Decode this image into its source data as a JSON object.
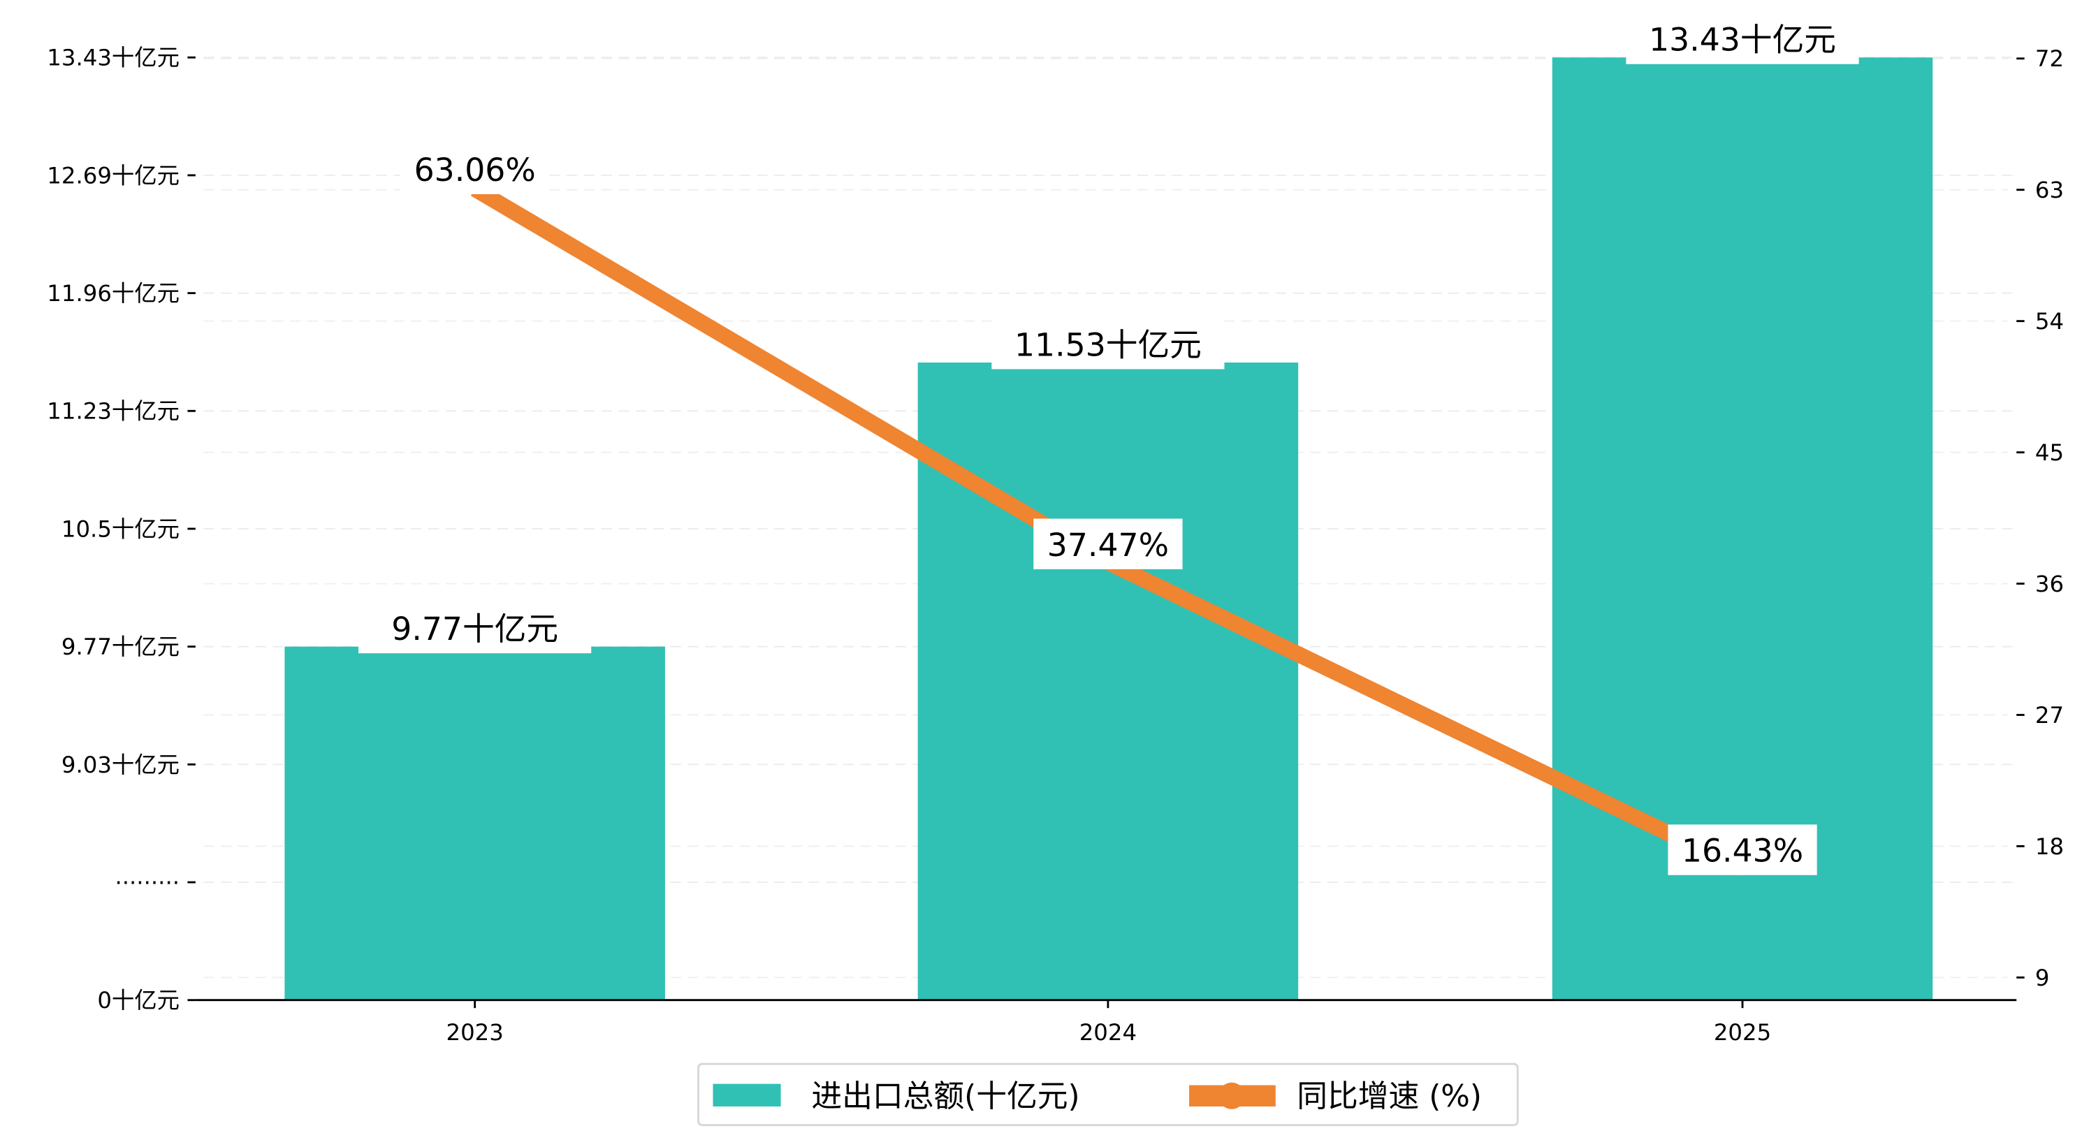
{
  "chart_data": {
    "type": "bar+line",
    "categories": [
      "2023",
      "2024",
      "2025"
    ],
    "series": [
      {
        "name": "进出口总额(十亿元)",
        "type": "bar",
        "axis": "left",
        "values": [
          9.77,
          11.53,
          13.43
        ],
        "labels": [
          "9.77十亿元",
          "11.53十亿元",
          "13.43十亿元"
        ],
        "color": "#31c0b4"
      },
      {
        "name": "同比增速 (%)",
        "type": "line",
        "axis": "right",
        "values": [
          63.06,
          37.47,
          16.43
        ],
        "labels": [
          "63.06%",
          "37.47%",
          "16.43%"
        ],
        "color": "#ef8431"
      }
    ],
    "left_axis": {
      "ticks": [
        0,
        null,
        9.03,
        9.77,
        10.5,
        11.23,
        11.96,
        12.69,
        13.43
      ],
      "tick_labels": [
        "0十亿元",
        "·········",
        "9.03十亿元",
        "9.77十亿元",
        "10.5十亿元",
        "11.23十亿元",
        "11.96十亿元",
        "12.69十亿元",
        "13.43十亿元"
      ],
      "broken": true
    },
    "right_axis": {
      "ticks": [
        9,
        18,
        27,
        36,
        45,
        54,
        63,
        72
      ],
      "tick_labels": [
        "9",
        "18",
        "27",
        "36",
        "45",
        "54",
        "63",
        "72"
      ],
      "ylim": [
        0,
        72
      ]
    },
    "grid": true,
    "legend": {
      "placement": "bottom-center",
      "entries": [
        "进出口总额(十亿元)",
        "同比增速 (%)"
      ]
    },
    "title": "",
    "xlabel": "",
    "ylabel": ""
  }
}
